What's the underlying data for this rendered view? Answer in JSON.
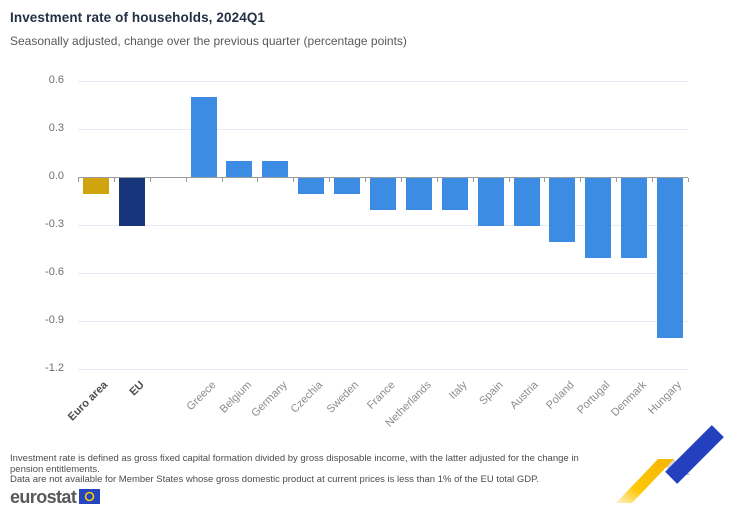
{
  "header": {
    "title": "Investment rate of households, 2024Q1",
    "subtitle": "Seasonally adjusted, change over the previous quarter (percentage points)"
  },
  "chart_data": {
    "type": "bar",
    "title": "Investment rate of households, 2024Q1",
    "subtitle": "Seasonally adjusted, change over the previous quarter (percentage points)",
    "categories": [
      "Euro area",
      "EU",
      "Greece",
      "Belgium",
      "Germany",
      "Czechia",
      "Sweden",
      "France",
      "Netherlands",
      "Italy",
      "Spain",
      "Austria",
      "Poland",
      "Portugal",
      "Denmark",
      "Hungary"
    ],
    "values": [
      -0.1,
      -0.3,
      0.5,
      0.1,
      0.1,
      -0.1,
      -0.1,
      -0.2,
      -0.2,
      -0.2,
      -0.3,
      -0.3,
      -0.4,
      -0.5,
      -0.5,
      -1.0
    ],
    "unit": "percentage points",
    "emphasized": [
      "Euro area",
      "EU"
    ],
    "gap_after": "EU",
    "colors": {
      "euro_area_bar": "#CFA40F",
      "eu_bar": "#17357B",
      "member_state_bar": "#3D8CE3",
      "gridline": "#E7EBF6",
      "axis": "#9B9B9B"
    },
    "y_ticks": [
      "0.6",
      "0.3",
      "0.0",
      "-0.3",
      "-0.6",
      "-0.9",
      "-1.2"
    ],
    "ylim": [
      -1.2,
      0.6
    ],
    "grid": true,
    "legend_position": "none",
    "xlabel": "",
    "ylabel": ""
  },
  "footnotes": {
    "line1": "Investment rate is defined as gross fixed capital formation divided by gross disposable income, with the latter adjusted for the change in pension entitlements.",
    "line2": "Data are not available for Member States whose gross domestic product at current prices is less than 1% of the EU total GDP."
  },
  "branding": {
    "logo_text": "eurostat",
    "flag_blue": "#2546BE",
    "star_yellow": "#FFCC00",
    "ribbon_yellow": "#FFC400",
    "ribbon_gray": "#C7C7C7",
    "ribbon_blue": "#2340BE"
  }
}
